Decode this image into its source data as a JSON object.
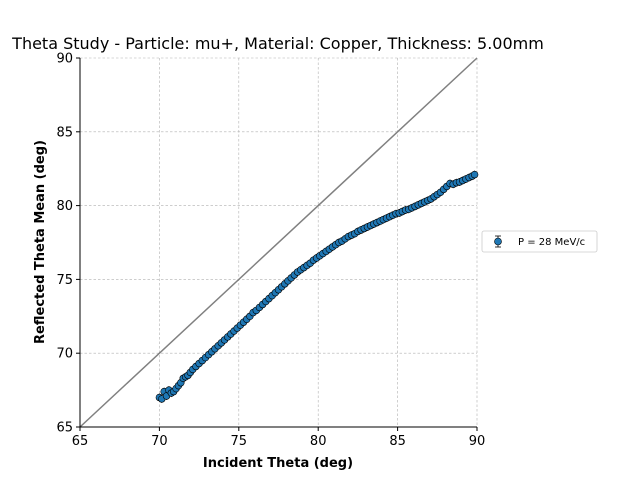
{
  "chart_data": {
    "type": "scatter",
    "title": "Theta Study - Particle: mu+, Material: Copper, Thickness: 5.00mm",
    "xlabel": "Incident Theta (deg)",
    "ylabel": "Reflected Theta Mean (deg)",
    "xlim": [
      65,
      90
    ],
    "ylim": [
      65,
      90
    ],
    "xticks": [
      "65",
      "70",
      "75",
      "80",
      "85",
      "90"
    ],
    "yticks": [
      "65",
      "70",
      "75",
      "80",
      "85",
      "90"
    ],
    "grid": true,
    "legend_position": "right",
    "reference_line": "y = x",
    "colors": {
      "marker": "#1f77b4",
      "reference_line": "#808080"
    },
    "series": [
      {
        "name": "P = 28 MeV/c",
        "x": [
          70.0,
          70.15,
          70.3,
          70.45,
          70.6,
          70.75,
          70.9,
          71.05,
          71.2,
          71.35,
          71.5,
          71.65,
          71.8,
          71.95,
          72.1,
          72.3,
          72.5,
          72.7,
          72.9,
          73.1,
          73.3,
          73.5,
          73.7,
          73.9,
          74.1,
          74.3,
          74.5,
          74.7,
          74.9,
          75.1,
          75.3,
          75.5,
          75.7,
          75.9,
          76.1,
          76.3,
          76.5,
          76.7,
          76.9,
          77.1,
          77.3,
          77.5,
          77.7,
          77.9,
          78.1,
          78.3,
          78.5,
          78.7,
          78.9,
          79.1,
          79.3,
          79.5,
          79.7,
          79.9,
          80.1,
          80.3,
          80.5,
          80.7,
          80.9,
          81.1,
          81.3,
          81.5,
          81.7,
          81.9,
          82.1,
          82.3,
          82.5,
          82.7,
          82.9,
          83.1,
          83.3,
          83.5,
          83.7,
          83.9,
          84.1,
          84.3,
          84.5,
          84.7,
          84.9,
          85.1,
          85.3,
          85.5,
          85.7,
          85.9,
          86.1,
          86.3,
          86.5,
          86.7,
          86.9,
          87.1,
          87.3,
          87.5,
          87.7,
          87.9,
          88.1,
          88.3,
          88.5,
          88.7,
          88.9,
          89.1,
          89.3,
          89.5,
          89.7,
          89.85
        ],
        "y": [
          67.0,
          66.9,
          67.4,
          67.1,
          67.5,
          67.3,
          67.4,
          67.6,
          67.8,
          68.0,
          68.3,
          68.4,
          68.5,
          68.7,
          68.9,
          69.1,
          69.3,
          69.5,
          69.7,
          69.9,
          70.1,
          70.3,
          70.5,
          70.7,
          70.9,
          71.1,
          71.3,
          71.5,
          71.7,
          71.9,
          72.1,
          72.3,
          72.5,
          72.75,
          72.9,
          73.1,
          73.3,
          73.5,
          73.7,
          73.9,
          74.1,
          74.3,
          74.5,
          74.7,
          74.9,
          75.1,
          75.3,
          75.5,
          75.65,
          75.8,
          75.95,
          76.1,
          76.3,
          76.45,
          76.6,
          76.75,
          76.9,
          77.05,
          77.2,
          77.35,
          77.5,
          77.6,
          77.75,
          77.9,
          78.0,
          78.1,
          78.25,
          78.35,
          78.45,
          78.55,
          78.65,
          78.75,
          78.85,
          78.95,
          79.05,
          79.15,
          79.25,
          79.35,
          79.45,
          79.5,
          79.6,
          79.7,
          79.75,
          79.85,
          79.95,
          80.05,
          80.15,
          80.25,
          80.35,
          80.45,
          80.6,
          80.75,
          80.9,
          81.1,
          81.3,
          81.5,
          81.45,
          81.55,
          81.6,
          81.7,
          81.8,
          81.9,
          82.0,
          82.1
        ]
      }
    ]
  }
}
